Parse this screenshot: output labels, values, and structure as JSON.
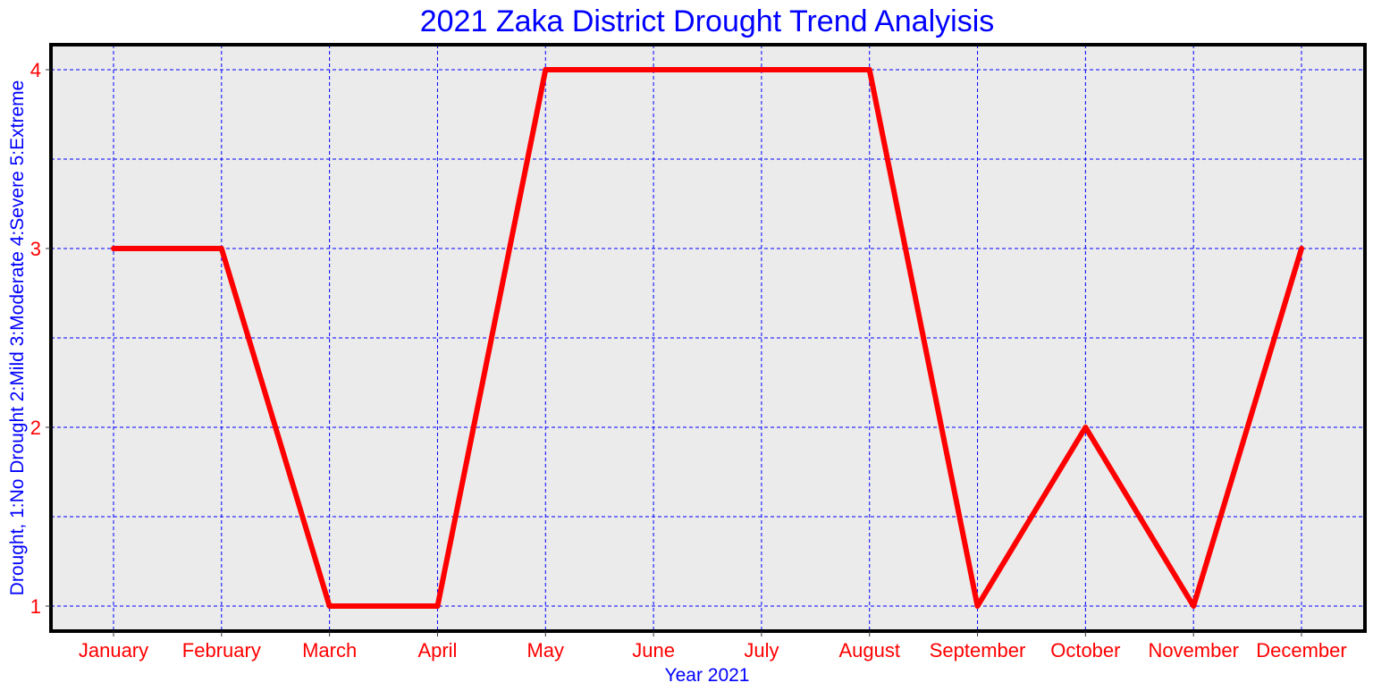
{
  "colors": {
    "title": "#0000ff",
    "axis_label": "#0000ff",
    "tick_label": "#ff0000",
    "grid": "#0000ff",
    "plot_background": "#ebebeb",
    "frame": "#000000",
    "line": "#ff0000"
  },
  "chart_data": {
    "type": "line",
    "title": "2021 Zaka District Drought Trend Analyisis",
    "xlabel": "Year 2021",
    "ylabel": "Drought, 1:No Drought 2:Mild 3:Moderate 4:Severe 5:Extreme",
    "categories": [
      "January",
      "February",
      "March",
      "April",
      "May",
      "June",
      "July",
      "August",
      "September",
      "October",
      "November",
      "December"
    ],
    "series": [
      {
        "values": [
          3,
          3,
          1,
          1,
          4,
          4,
          4,
          4,
          1,
          2,
          1,
          3
        ]
      }
    ],
    "ylim": [
      0.86,
      4.14
    ],
    "yticks": [
      "1",
      "2",
      "3",
      "4"
    ],
    "ygrid_values": [
      1,
      1.5,
      2,
      2.5,
      3,
      3.5,
      4
    ],
    "grid": true,
    "legend": "none"
  }
}
